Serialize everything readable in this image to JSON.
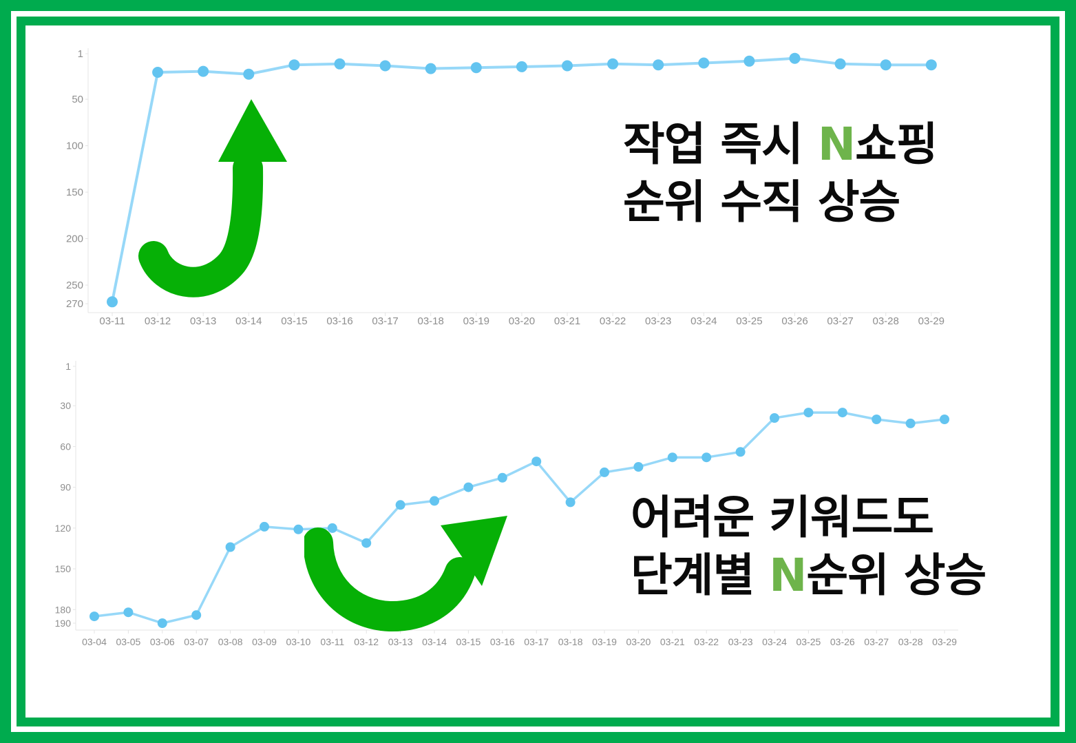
{
  "colors": {
    "frame_green": "#00AB4E",
    "arrow_green": "#06B006",
    "accent_green": "#6EB44B",
    "line_blue": "#97D8F8",
    "dot_blue": "#63C4F0",
    "axis_text": "#8e8e8e",
    "axis_line": "#e4e4e4",
    "headline_black": "#0a0a0a"
  },
  "headline_top": {
    "line1_prefix": "작업 즉시 ",
    "line1_accent": "N",
    "line1_suffix": "쇼핑",
    "line2": "순위 수직 상승"
  },
  "headline_bottom": {
    "line1": "어려운 키워드도",
    "line2_prefix": "단계별 ",
    "line2_accent": "N",
    "line2_suffix": "순위 상승"
  },
  "chart_data": [
    {
      "type": "line",
      "title": "",
      "xlabel": "",
      "ylabel": "",
      "y_axis_inverted": true,
      "grid": false,
      "legend": "none",
      "ylim": [
        1,
        270
      ],
      "y_ticks": [
        1,
        50,
        100,
        150,
        200,
        250,
        270
      ],
      "x": [
        "03-11",
        "03-12",
        "03-13",
        "03-14",
        "03-15",
        "03-16",
        "03-17",
        "03-18",
        "03-19",
        "03-20",
        "03-21",
        "03-22",
        "03-23",
        "03-24",
        "03-25",
        "03-26",
        "03-27",
        "03-28",
        "03-29"
      ],
      "values": [
        268,
        21,
        20,
        23,
        13,
        12,
        14,
        17,
        16,
        15,
        14,
        12,
        13,
        11,
        9,
        6,
        12,
        13,
        13
      ]
    },
    {
      "type": "line",
      "title": "",
      "xlabel": "",
      "ylabel": "",
      "y_axis_inverted": true,
      "grid": false,
      "legend": "none",
      "ylim": [
        1,
        190
      ],
      "y_ticks": [
        1,
        30,
        60,
        90,
        120,
        150,
        180,
        190
      ],
      "x": [
        "03-04",
        "03-05",
        "03-06",
        "03-07",
        "03-08",
        "03-09",
        "03-10",
        "03-11",
        "03-12",
        "03-13",
        "03-14",
        "03-15",
        "03-16",
        "03-17",
        "03-18",
        "03-19",
        "03-20",
        "03-21",
        "03-22",
        "03-23",
        "03-24",
        "03-25",
        "03-26",
        "03-27",
        "03-28",
        "03-29"
      ],
      "values": [
        185,
        182,
        190,
        184,
        134,
        119,
        121,
        120,
        131,
        103,
        100,
        90,
        83,
        71,
        101,
        79,
        75,
        68,
        68,
        64,
        39,
        35,
        35,
        40,
        43,
        40
      ]
    }
  ]
}
